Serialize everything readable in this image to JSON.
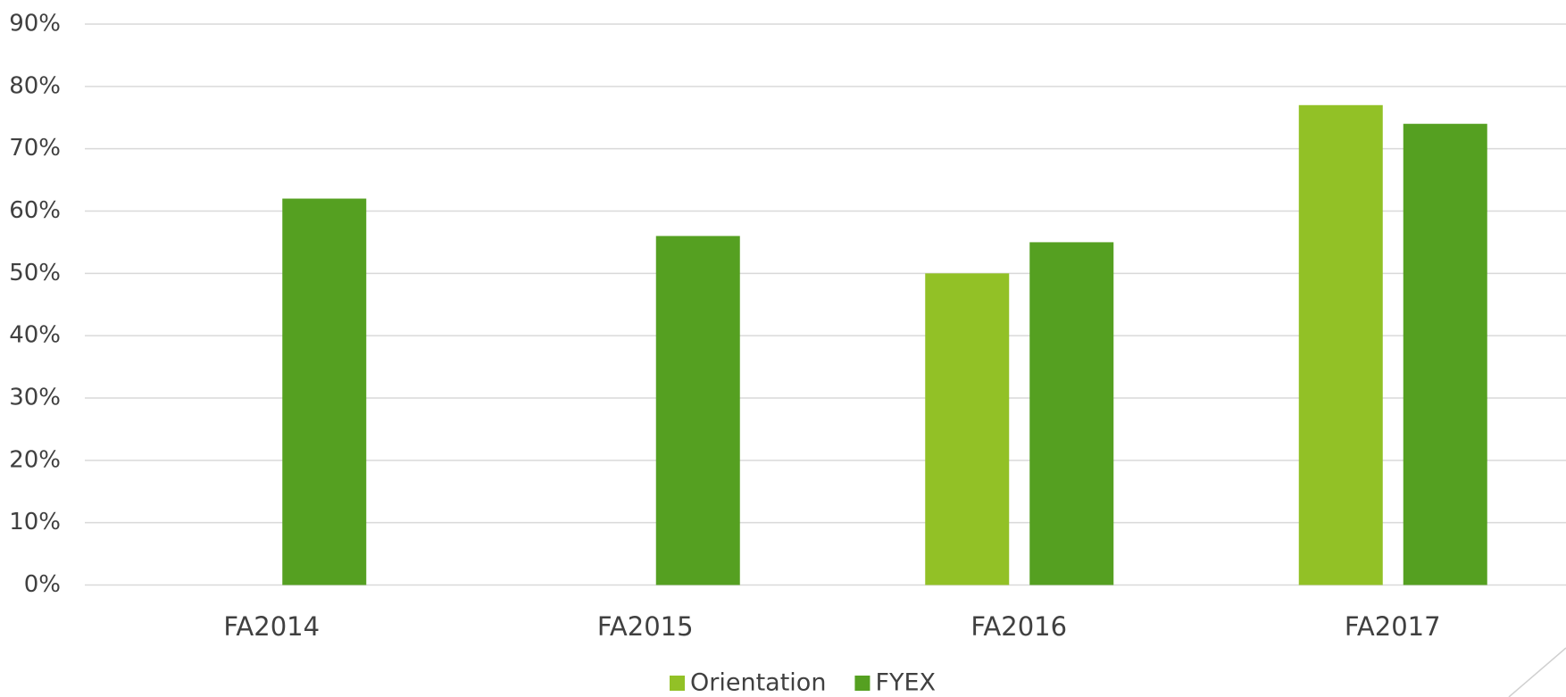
{
  "chart_data": {
    "type": "bar",
    "categories": [
      "FA2014",
      "FA2015",
      "FA2016",
      "FA2017"
    ],
    "series": [
      {
        "name": "Orientation",
        "color": "#92c126",
        "values": [
          null,
          null,
          50,
          77
        ]
      },
      {
        "name": "FYEX",
        "color": "#55a021",
        "values": [
          62,
          56,
          55,
          74
        ]
      }
    ],
    "ylim": [
      0,
      90
    ],
    "yticks": [
      {
        "value": 0,
        "label": "0%"
      },
      {
        "value": 10,
        "label": "10%"
      },
      {
        "value": 20,
        "label": "20%"
      },
      {
        "value": 30,
        "label": "30%"
      },
      {
        "value": 40,
        "label": "40%"
      },
      {
        "value": 50,
        "label": "50%"
      },
      {
        "value": 60,
        "label": "60%"
      },
      {
        "value": 70,
        "label": "70%"
      },
      {
        "value": 80,
        "label": "80%"
      },
      {
        "value": 90,
        "label": "90%"
      }
    ],
    "grid": true,
    "legend": "bottom"
  }
}
